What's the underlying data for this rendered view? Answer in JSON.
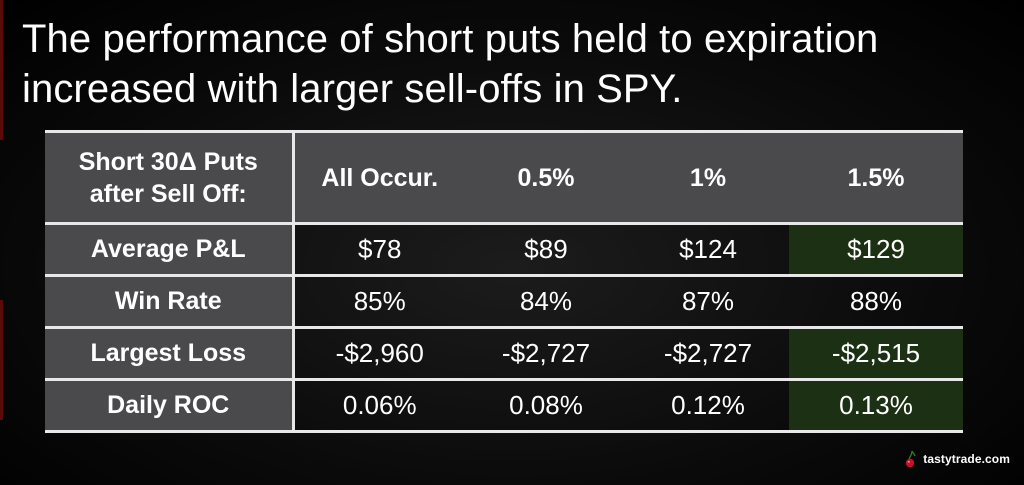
{
  "title": "The performance of short puts held to expiration increased with larger sell-offs in SPY.",
  "table": {
    "header": {
      "row_label_line1": "Short 30Δ Puts",
      "row_label_line2": "after Sell Off:",
      "columns": [
        "All Occur.",
        "0.5%",
        "1%",
        "1.5%"
      ]
    },
    "rows": [
      {
        "label": "Average P&L",
        "values": [
          "$78",
          "$89",
          "$124",
          "$129"
        ],
        "highlight_col": 3
      },
      {
        "label": "Win Rate",
        "values": [
          "85%",
          "84%",
          "87%",
          "88%"
        ],
        "highlight_col": null
      },
      {
        "label": "Largest Loss",
        "values": [
          "-$2,960",
          "-$2,727",
          "-$2,727",
          "-$2,515"
        ],
        "highlight_col": 3
      },
      {
        "label": "Daily ROC",
        "values": [
          "0.06%",
          "0.08%",
          "0.12%",
          "0.13%"
        ],
        "highlight_col": 3
      }
    ]
  },
  "colors": {
    "background": "#000000",
    "header_fill": "#4a4a4c",
    "highlight_fill": "#1c3014",
    "rule": "#e8e8e8",
    "brand_red": "#c8102e"
  },
  "logo": {
    "text": "tastytrade.com",
    "icon": "cherry-icon"
  }
}
